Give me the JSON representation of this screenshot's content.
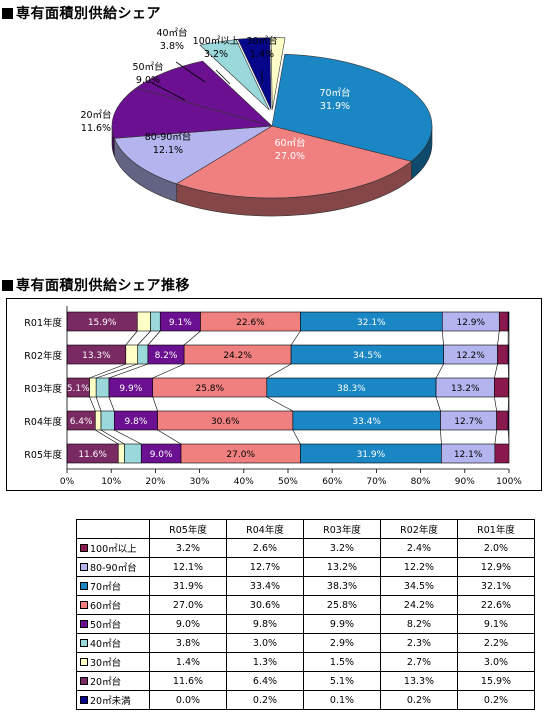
{
  "titles": {
    "pie": "専有面積別供給シェア",
    "bar": "専有面積別供給シェア推移"
  },
  "colors": {
    "100㎡以上": "#8a1a4e",
    "80-90㎡台": "#b4b4ee",
    "70㎡台": "#1a86c4",
    "60㎡台": "#f08080",
    "50㎡台": "#6a1090",
    "40㎡台": "#9ad8dc",
    "30㎡台": "#ffffc8",
    "20㎡台": "#7a2a62",
    "20㎡未満": "#06068a"
  },
  "chart_data": [
    {
      "type": "pie",
      "title": "専有面積別供給シェア",
      "slices": [
        {
          "label": "70㎡台",
          "value": 31.9,
          "pct_label": "31.9%"
        },
        {
          "label": "60㎡台",
          "value": 27.0,
          "pct_label": "27.0%"
        },
        {
          "label": "80-90㎡台",
          "value": 12.1,
          "pct_label": "12.1%"
        },
        {
          "label": "20㎡台",
          "value": 11.6,
          "pct_label": "11.6%"
        },
        {
          "label": "50㎡台",
          "value": 9.0,
          "pct_label": "9.0%"
        },
        {
          "label": "40㎡台",
          "value": 3.8,
          "pct_label": "3.8%"
        },
        {
          "label": "100㎡以上",
          "value": 3.2,
          "pct_label": "3.2%"
        },
        {
          "label": "30㎡台",
          "value": 1.4,
          "pct_label": "1.4%"
        }
      ],
      "pie_colors": {
        "70㎡台": "#1a86c4",
        "60㎡台": "#f08080",
        "80-90㎡台": "#b4b4ee",
        "20㎡台": "#6a1090",
        "50㎡台": "#6a1090",
        "40㎡台": "#9ad8dc",
        "100㎡以上": "#06068a",
        "30㎡台": "#ffffc8"
      }
    },
    {
      "type": "bar",
      "orientation": "horizontal-stacked-100",
      "title": "専有面積別供給シェア推移",
      "categories": [
        "R01年度",
        "R02年度",
        "R03年度",
        "R04年度",
        "R05年度"
      ],
      "xlim": [
        0,
        100
      ],
      "xticks": [
        "0%",
        "10%",
        "20%",
        "30%",
        "40%",
        "50%",
        "60%",
        "70%",
        "80%",
        "90%",
        "100%"
      ],
      "series": [
        {
          "name": "20㎡台",
          "values": [
            15.9,
            13.3,
            5.1,
            6.4,
            11.6
          ],
          "labels": [
            "15.9%",
            "13.3%",
            "5.1%",
            "6.4%",
            "11.6%"
          ]
        },
        {
          "name": "30㎡台",
          "values": [
            3.0,
            2.7,
            1.5,
            1.3,
            1.4
          ],
          "labels": [
            "",
            "",
            "",
            "",
            ""
          ]
        },
        {
          "name": "40㎡台",
          "values": [
            2.2,
            2.3,
            2.9,
            3.0,
            3.8
          ],
          "labels": [
            "",
            "",
            "",
            "",
            ""
          ]
        },
        {
          "name": "50㎡台",
          "values": [
            9.1,
            8.2,
            9.9,
            9.8,
            9.0
          ],
          "labels": [
            "9.1%",
            "8.2%",
            "9.9%",
            "9.8%",
            "9.0%"
          ]
        },
        {
          "name": "60㎡台",
          "values": [
            22.6,
            24.2,
            25.8,
            30.6,
            27.0
          ],
          "labels": [
            "22.6%",
            "24.2%",
            "25.8%",
            "30.6%",
            "27.0%"
          ]
        },
        {
          "name": "70㎡台",
          "values": [
            32.1,
            34.5,
            38.3,
            33.4,
            31.9
          ],
          "labels": [
            "32.1%",
            "34.5%",
            "38.3%",
            "33.4%",
            "31.9%"
          ]
        },
        {
          "name": "80-90㎡台",
          "values": [
            12.9,
            12.2,
            13.2,
            12.7,
            12.1
          ],
          "labels": [
            "12.9%",
            "12.2%",
            "13.2%",
            "12.7%",
            "12.1%"
          ]
        },
        {
          "name": "100㎡以上",
          "values": [
            2.0,
            2.4,
            3.2,
            2.6,
            3.2
          ],
          "labels": [
            "",
            "",
            "",
            "",
            ""
          ]
        },
        {
          "name": "20㎡未満",
          "values": [
            0.2,
            0.2,
            0.1,
            0.2,
            0.0
          ],
          "labels": [
            "",
            "",
            "",
            "",
            ""
          ]
        }
      ]
    },
    {
      "type": "table",
      "columns": [
        "R05年度",
        "R04年度",
        "R03年度",
        "R02年度",
        "R01年度"
      ],
      "rows": [
        {
          "label": "100㎡以上",
          "values": [
            "3.2%",
            "2.6%",
            "3.2%",
            "2.4%",
            "2.0%"
          ]
        },
        {
          "label": "80-90㎡台",
          "values": [
            "12.1%",
            "12.7%",
            "13.2%",
            "12.2%",
            "12.9%"
          ]
        },
        {
          "label": "70㎡台",
          "values": [
            "31.9%",
            "33.4%",
            "38.3%",
            "34.5%",
            "32.1%"
          ]
        },
        {
          "label": "60㎡台",
          "values": [
            "27.0%",
            "30.6%",
            "25.8%",
            "24.2%",
            "22.6%"
          ]
        },
        {
          "label": "50㎡台",
          "values": [
            "9.0%",
            "9.8%",
            "9.9%",
            "8.2%",
            "9.1%"
          ]
        },
        {
          "label": "40㎡台",
          "values": [
            "3.8%",
            "3.0%",
            "2.9%",
            "2.3%",
            "2.2%"
          ]
        },
        {
          "label": "30㎡台",
          "values": [
            "1.4%",
            "1.3%",
            "1.5%",
            "2.7%",
            "3.0%"
          ]
        },
        {
          "label": "20㎡台",
          "values": [
            "11.6%",
            "6.4%",
            "5.1%",
            "13.3%",
            "15.9%"
          ]
        },
        {
          "label": "20㎡未満",
          "values": [
            "0.0%",
            "0.2%",
            "0.1%",
            "0.2%",
            "0.2%"
          ]
        }
      ]
    }
  ]
}
